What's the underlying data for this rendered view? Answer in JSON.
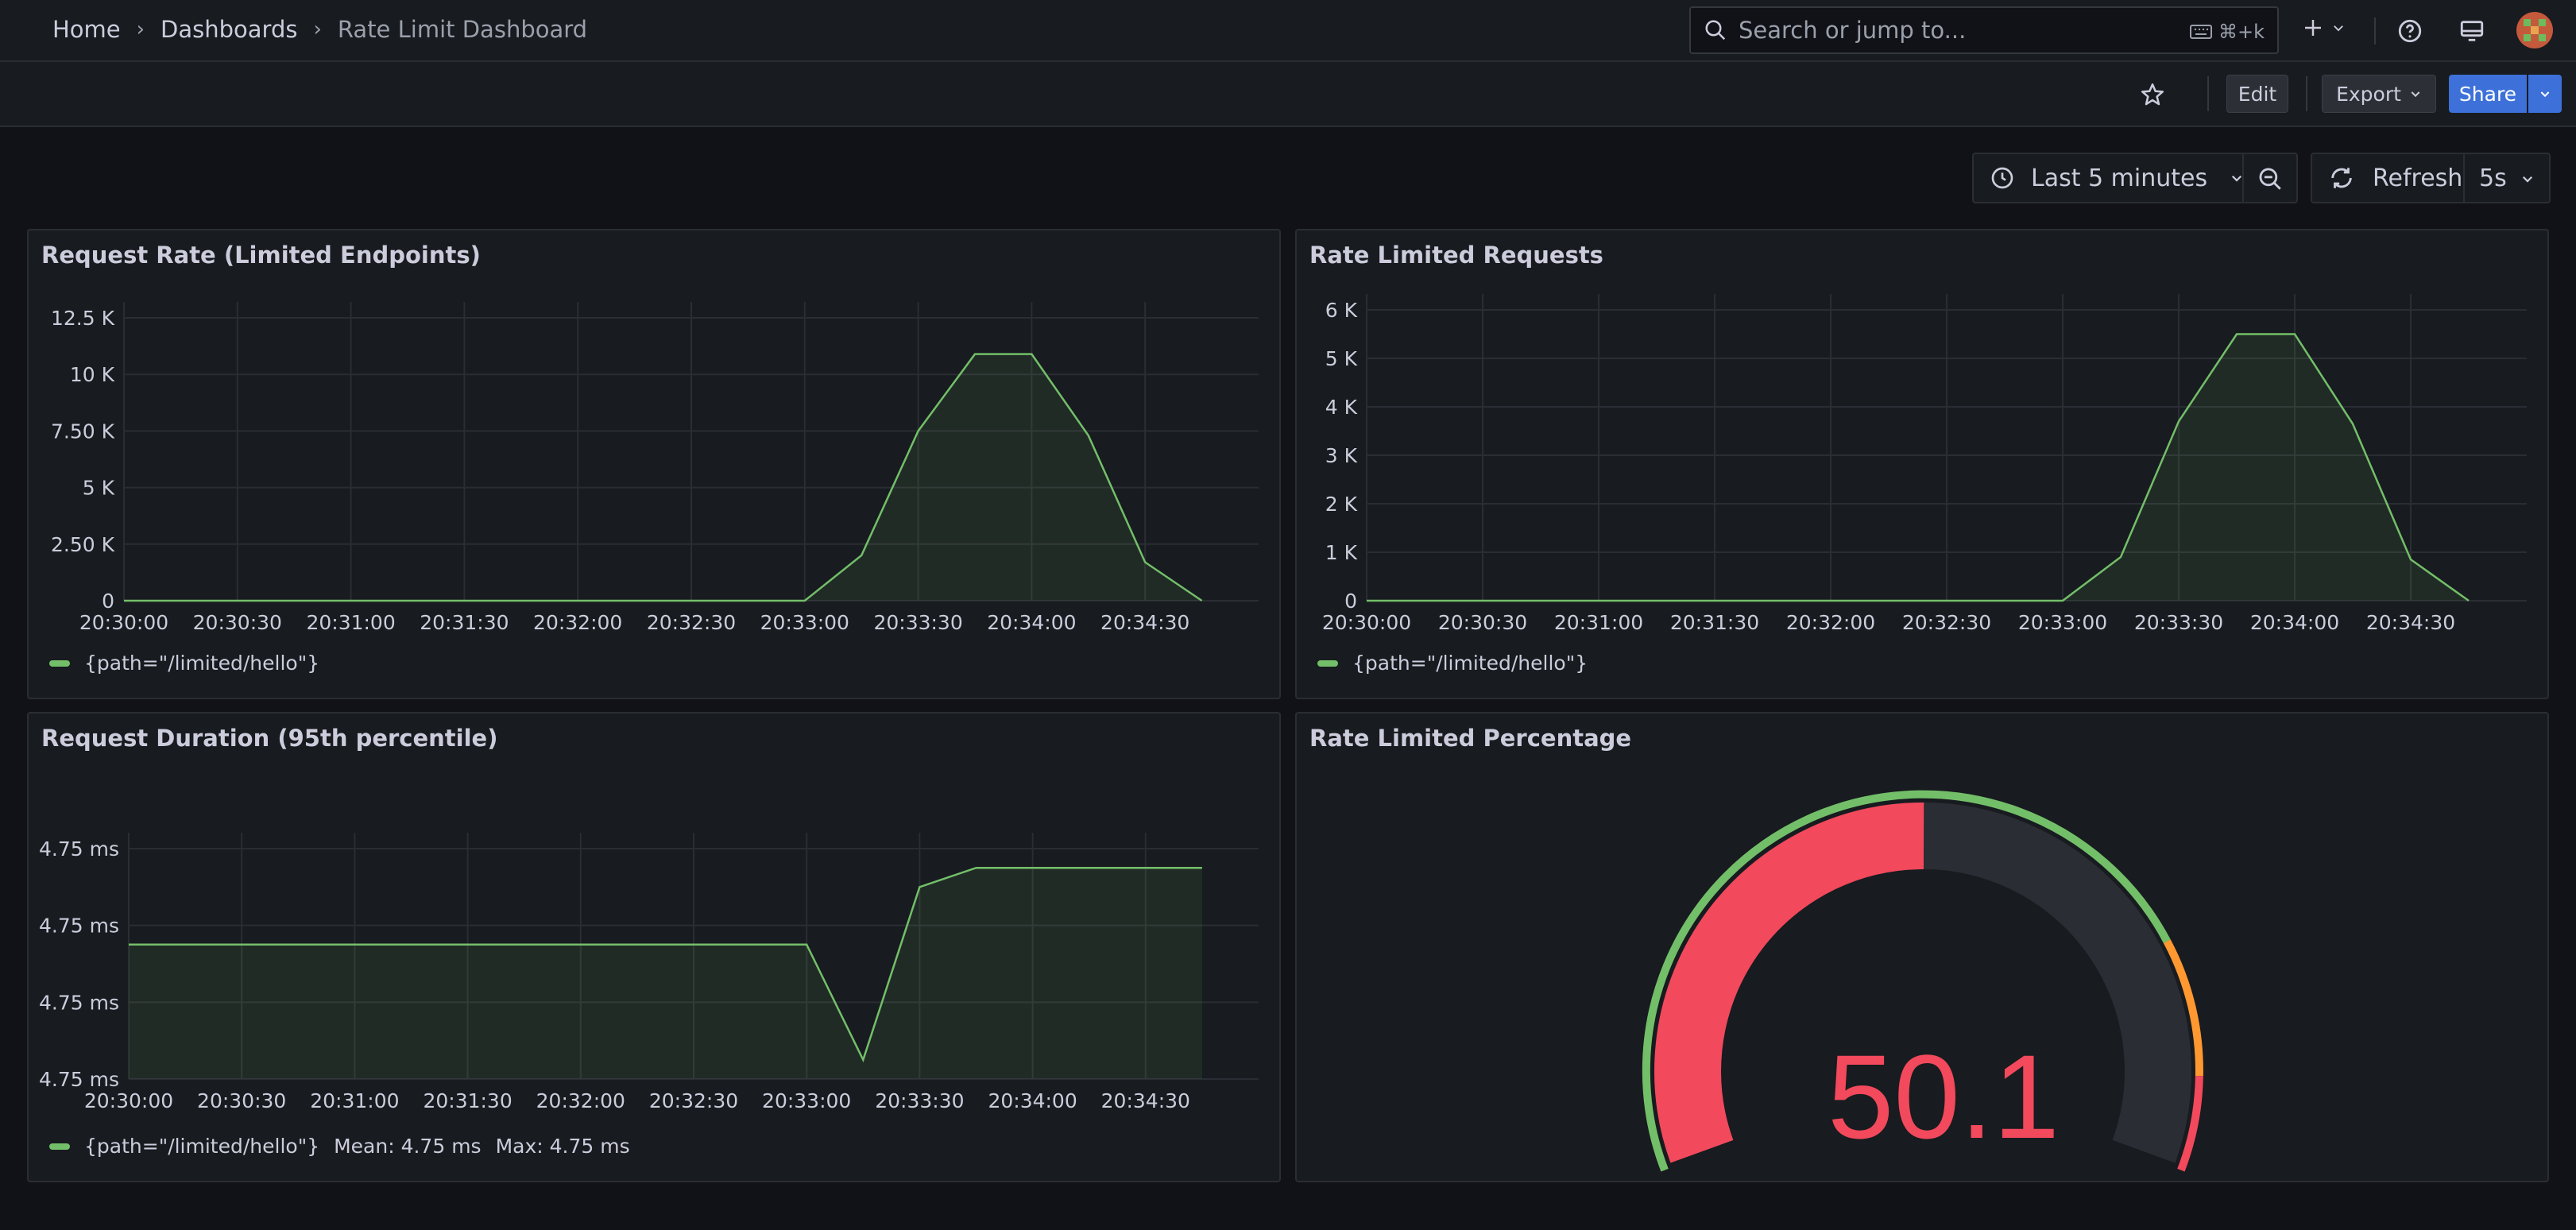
{
  "breadcrumb": {
    "home": "Home",
    "dashboards": "Dashboards",
    "current": "Rate Limit Dashboard"
  },
  "search": {
    "placeholder": "Search or jump to...",
    "shortcut": "⌘+k"
  },
  "toolbar": {
    "edit": "Edit",
    "export": "Export",
    "share": "Share"
  },
  "timepicker": {
    "range": "Last 5 minutes",
    "refresh": "Refresh",
    "interval": "5s"
  },
  "colors": {
    "series": "#73bf69",
    "gauge_red": "#f2495c",
    "gauge_orange": "#ff9830",
    "accent": "#3d71d9"
  },
  "icons": [
    "search-icon",
    "keyboard-icon",
    "plus-icon",
    "chevron-down-icon",
    "help-icon",
    "monitor-icon",
    "avatar",
    "star-icon",
    "clock-icon",
    "zoom-out-icon",
    "refresh-icon"
  ],
  "panels": {
    "request_rate": {
      "title": "Request Rate (Limited Endpoints)",
      "legend": "{path=\"/limited/hello\"}"
    },
    "rate_limited": {
      "title": "Rate Limited Requests",
      "legend": "{path=\"/limited/hello\"}"
    },
    "duration": {
      "title": "Request Duration (95th percentile)",
      "legend": "{path=\"/limited/hello\"}",
      "mean": "Mean: 4.75 ms",
      "max": "Max: 4.75 ms"
    },
    "percentage": {
      "title": "Rate Limited Percentage",
      "value": "50.1"
    }
  },
  "chart_data": [
    {
      "type": "area",
      "title": "Request Rate (Limited Endpoints)",
      "x_ticks": [
        "20:30:00",
        "20:30:30",
        "20:31:00",
        "20:31:30",
        "20:32:00",
        "20:32:30",
        "20:33:00",
        "20:33:30",
        "20:34:00",
        "20:34:30"
      ],
      "y_ticks": [
        "0",
        "2.50 K",
        "5 K",
        "7.50 K",
        "10 K",
        "12.5 K"
      ],
      "ylim": [
        0,
        12500
      ],
      "series": [
        {
          "name": "{path=\"/limited/hello\"}",
          "x": [
            "20:30:00",
            "20:31:00",
            "20:32:00",
            "20:33:00",
            "20:33:15",
            "20:33:30",
            "20:33:45",
            "20:34:00",
            "20:34:15",
            "20:34:30",
            "20:34:45"
          ],
          "values": [
            0,
            0,
            0,
            0,
            2000,
            7500,
            10900,
            10900,
            7300,
            1700,
            0
          ]
        }
      ],
      "grid": true,
      "legend_position": "bottom-left"
    },
    {
      "type": "area",
      "title": "Rate Limited Requests",
      "x_ticks": [
        "20:30:00",
        "20:30:30",
        "20:31:00",
        "20:31:30",
        "20:32:00",
        "20:32:30",
        "20:33:00",
        "20:33:30",
        "20:34:00",
        "20:34:30"
      ],
      "y_ticks": [
        "0",
        "1 K",
        "2 K",
        "3 K",
        "4 K",
        "5 K",
        "6 K"
      ],
      "ylim": [
        0,
        6000
      ],
      "series": [
        {
          "name": "{path=\"/limited/hello\"}",
          "x": [
            "20:30:00",
            "20:31:00",
            "20:32:00",
            "20:33:00",
            "20:33:15",
            "20:33:30",
            "20:33:45",
            "20:34:00",
            "20:34:15",
            "20:34:30",
            "20:34:45"
          ],
          "values": [
            0,
            0,
            0,
            0,
            900,
            3700,
            5500,
            5500,
            3650,
            850,
            0
          ]
        }
      ],
      "grid": true,
      "legend_position": "bottom-left"
    },
    {
      "type": "area",
      "title": "Request Duration (95th percentile)",
      "x_ticks": [
        "20:30:00",
        "20:30:30",
        "20:31:00",
        "20:31:30",
        "20:32:00",
        "20:32:30",
        "20:33:00",
        "20:33:30",
        "20:34:00",
        "20:34:30"
      ],
      "y_ticks": [
        "4.75 ms",
        "4.75 ms",
        "4.75 ms",
        "4.75 ms"
      ],
      "ylim": [
        4.7495,
        4.7507
      ],
      "series": [
        {
          "name": "{path=\"/limited/hello\"}",
          "x": [
            "20:30:00",
            "20:31:00",
            "20:32:00",
            "20:33:00",
            "20:33:15",
            "20:33:30",
            "20:33:45",
            "20:34:00",
            "20:34:30",
            "20:34:45"
          ],
          "values": [
            4.7502,
            4.7502,
            4.7502,
            4.7502,
            4.7496,
            4.7505,
            4.7506,
            4.7506,
            4.7506,
            4.7506
          ]
        }
      ],
      "grid": true,
      "legend_position": "bottom-left"
    },
    {
      "type": "gauge",
      "title": "Rate Limited Percentage",
      "value": 50.1,
      "min": 0,
      "max": 100,
      "thresholds": [
        {
          "color": "green"
        },
        {
          "color": "orange"
        },
        {
          "color": "red"
        }
      ]
    }
  ]
}
